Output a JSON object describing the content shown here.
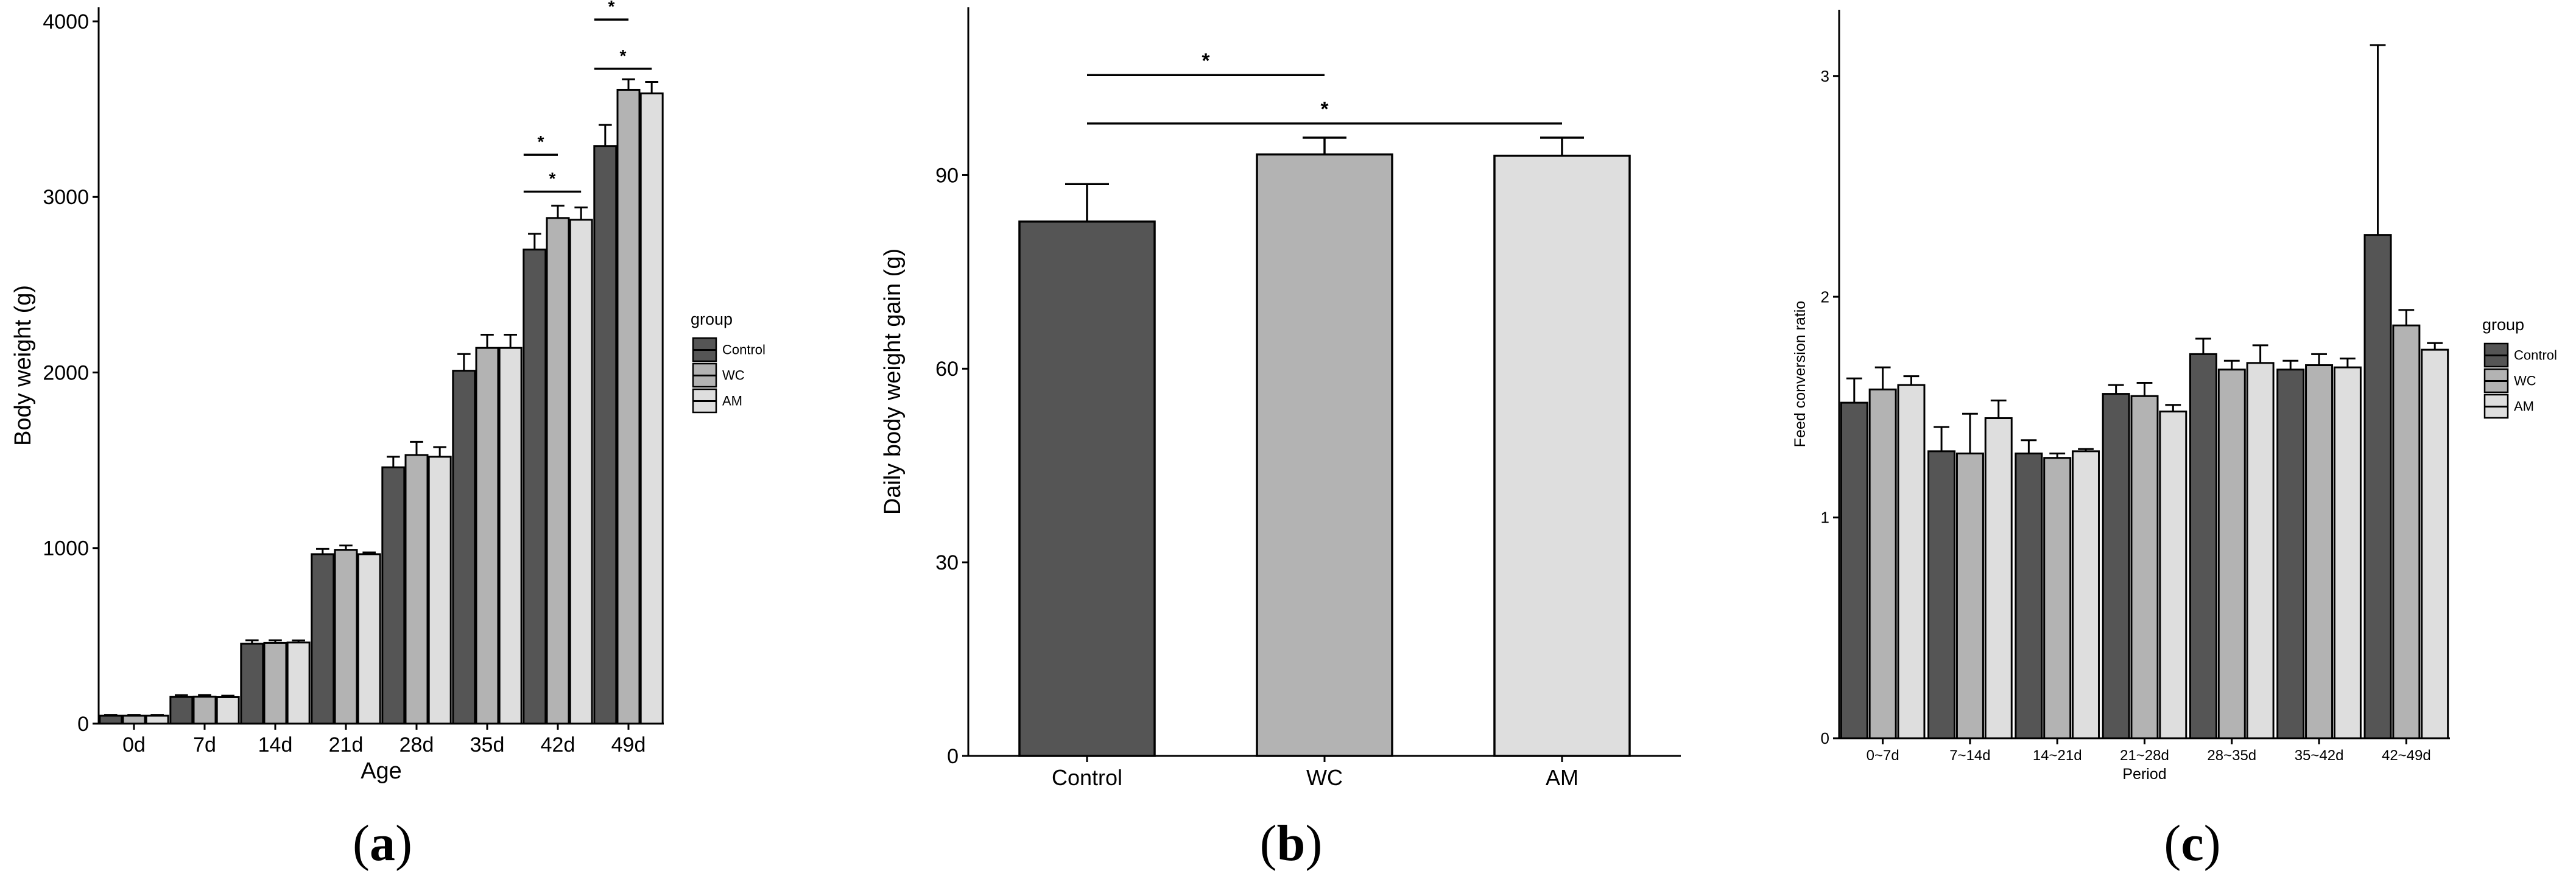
{
  "chart_data": [
    {
      "id": "a",
      "type": "bar",
      "panel_label": "(a)",
      "xlabel": "Age",
      "ylabel": "Body weight (g)",
      "ylim": [
        0,
        4080
      ],
      "yticks": [
        0,
        1000,
        2000,
        3000,
        4000
      ],
      "categories": [
        "0d",
        "7d",
        "14d",
        "21d",
        "28d",
        "35d",
        "42d",
        "49d"
      ],
      "legend": {
        "title": "group",
        "position": "right"
      },
      "series": [
        {
          "name": "Control",
          "color": "#555555",
          "values": [
            45,
            152,
            455,
            965,
            1460,
            2010,
            2700,
            3290
          ],
          "errors": [
            5,
            10,
            20,
            30,
            60,
            95,
            90,
            120
          ]
        },
        {
          "name": "WC",
          "color": "#b3b3b3",
          "values": [
            45,
            153,
            460,
            990,
            1530,
            2140,
            2880,
            3610
          ],
          "errors": [
            5,
            10,
            15,
            25,
            75,
            75,
            70,
            60
          ]
        },
        {
          "name": "AM",
          "color": "#dedede",
          "values": [
            45,
            151,
            462,
            965,
            1520,
            2140,
            2870,
            3590
          ],
          "errors": [
            5,
            8,
            12,
            10,
            55,
            75,
            70,
            65
          ]
        }
      ],
      "significance": [
        {
          "category": "42d",
          "from": "Control",
          "to": "WC",
          "y": 3240,
          "label": "*"
        },
        {
          "category": "42d",
          "from": "Control",
          "to": "AM",
          "y": 3030,
          "label": "*"
        },
        {
          "category": "49d",
          "from": "Control",
          "to": "WC",
          "y": 4010,
          "label": "*"
        },
        {
          "category": "49d",
          "from": "Control",
          "to": "AM",
          "y": 3730,
          "label": "*"
        }
      ]
    },
    {
      "id": "b",
      "type": "bar",
      "panel_label": "(b)",
      "xlabel": "",
      "ylabel": "Daily body weight gain (g)",
      "ylim": [
        0,
        116
      ],
      "yticks": [
        0,
        30,
        60,
        90
      ],
      "categories": [
        "Control",
        "WC",
        "AM"
      ],
      "colors": [
        "#555555",
        "#b3b3b3",
        "#dedede"
      ],
      "values": [
        82.8,
        93.2,
        93.0
      ],
      "errors": [
        5.8,
        2.6,
        2.8
      ],
      "significance": [
        {
          "from": "Control",
          "to": "WC",
          "y": 105.5,
          "label": "*"
        },
        {
          "from": "Control",
          "to": "AM",
          "y": 98.0,
          "label": "*"
        }
      ]
    },
    {
      "id": "c",
      "type": "bar",
      "panel_label": "(c)",
      "xlabel": "Period",
      "ylabel": "Feed conversion ratio",
      "ylim": [
        0,
        3.3
      ],
      "yticks": [
        0,
        1,
        2,
        3
      ],
      "categories": [
        "0~7d",
        "7~14d",
        "14~21d",
        "21~28d",
        "28~35d",
        "35~42d",
        "42~49d"
      ],
      "legend": {
        "title": "group",
        "position": "right"
      },
      "series": [
        {
          "name": "Control",
          "color": "#555555",
          "values": [
            1.52,
            1.3,
            1.29,
            1.56,
            1.74,
            1.67,
            2.28
          ],
          "errors": [
            0.11,
            0.11,
            0.06,
            0.04,
            0.07,
            0.04,
            0.86
          ]
        },
        {
          "name": "WC",
          "color": "#b3b3b3",
          "values": [
            1.58,
            1.29,
            1.27,
            1.55,
            1.67,
            1.69,
            1.87
          ],
          "errors": [
            0.1,
            0.18,
            0.02,
            0.06,
            0.04,
            0.05,
            0.07
          ]
        },
        {
          "name": "AM",
          "color": "#dedede",
          "values": [
            1.6,
            1.45,
            1.3,
            1.48,
            1.7,
            1.68,
            1.76
          ],
          "errors": [
            0.04,
            0.08,
            0.01,
            0.03,
            0.08,
            0.04,
            0.03
          ]
        }
      ]
    }
  ]
}
